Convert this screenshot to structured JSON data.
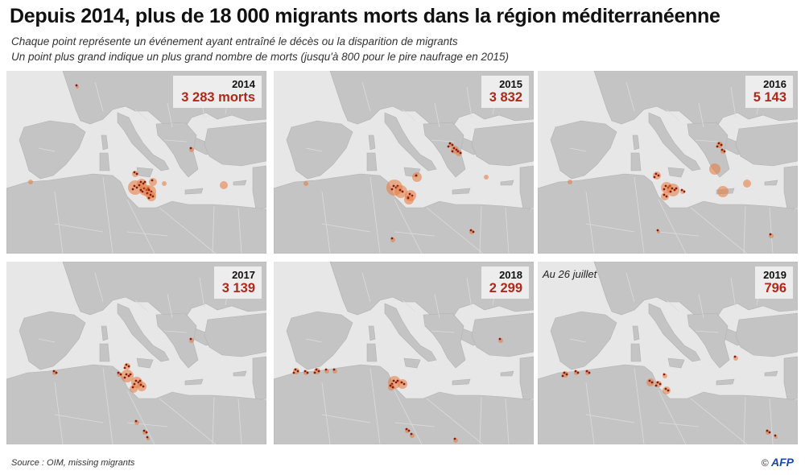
{
  "title": "Depuis 2014, plus de 18 000 migrants morts dans la région méditerranéenne",
  "subtitle_1": "Chaque point représente un événement ayant entraîné le décès ou la disparition de migrants",
  "subtitle_2": "Un point plus grand indique un plus grand nombre de morts (jusqu'à 800 pour le pire naufrage en 2015)",
  "panels": [
    {
      "year": "2014",
      "count": "3 283 morts",
      "note": ""
    },
    {
      "year": "2015",
      "count": "3 832",
      "note": ""
    },
    {
      "year": "2016",
      "count": "5 143",
      "note": ""
    },
    {
      "year": "2017",
      "count": "3 139",
      "note": ""
    },
    {
      "year": "2018",
      "count": "2 299",
      "note": ""
    },
    {
      "year": "2019",
      "count": "796",
      "note": "Au 26 juillet"
    }
  ],
  "source": "Source : OIM, missing migrants",
  "credit": {
    "symbol": "©",
    "brand": "AFP"
  },
  "colors": {
    "land": "#c4c4c4",
    "sea": "#e7e7e7",
    "dot": "#e8783c",
    "dot_dark": "#8a1a0a",
    "count_text": "#b0281a"
  }
}
